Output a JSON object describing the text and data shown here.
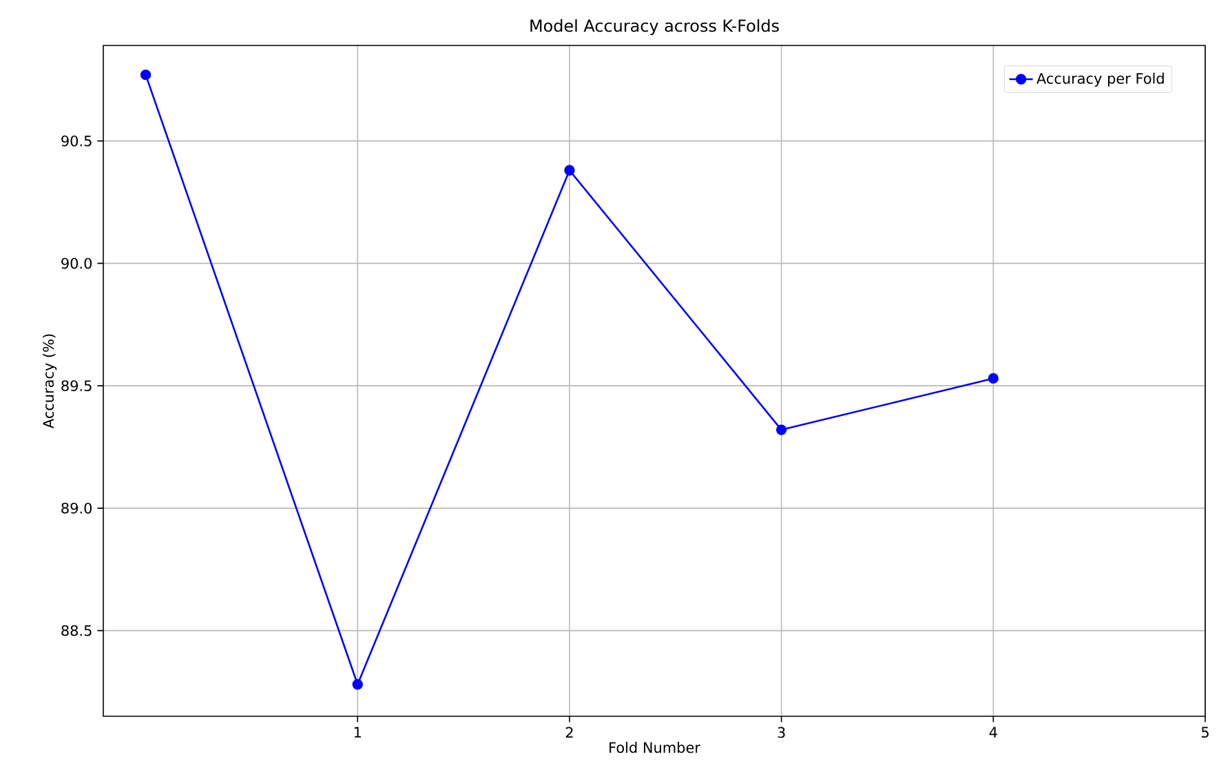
{
  "chart_data": {
    "type": "line",
    "title": "Model Accuracy across K-Folds",
    "xlabel": "Fold Number",
    "ylabel": "Accuracy (%)",
    "series": [
      {
        "name": "Accuracy per Fold",
        "color": "#0000ff",
        "x": [
          0,
          1,
          2,
          3,
          4
        ],
        "values": [
          90.77,
          88.28,
          90.38,
          89.32,
          89.53
        ]
      }
    ],
    "xlim": [
      -0.2,
      5
    ],
    "xticks": [
      1,
      2,
      3,
      4,
      5
    ],
    "ylim": [
      88.15,
      90.89
    ],
    "yticks": [
      88.5,
      {
        "value": 89.0,
        "label": "89.0"
      },
      89.5,
      {
        "value": 90.0,
        "label": "90.0"
      },
      90.5
    ],
    "grid": true,
    "legend": "top right",
    "marker": "circle",
    "line_style": "solid"
  }
}
